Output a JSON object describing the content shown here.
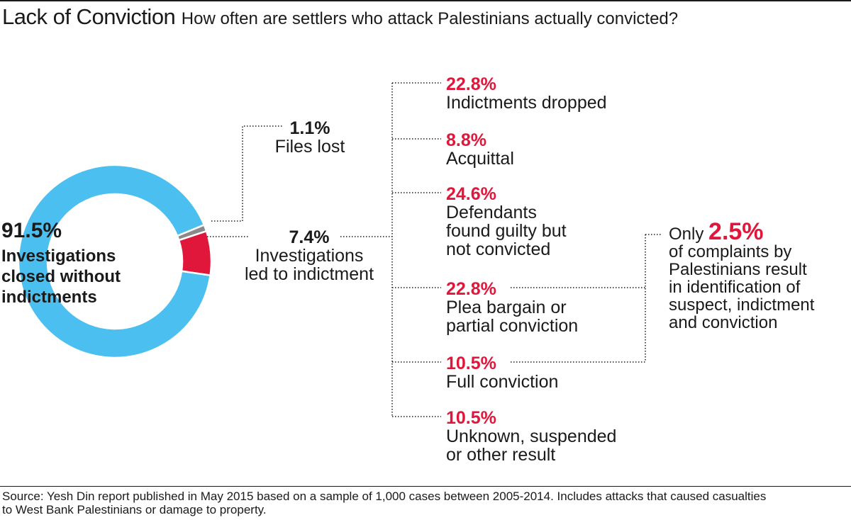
{
  "header": {
    "title": "Lack of Conviction",
    "subtitle": "How often are settlers who attack Palestinians actually convicted?"
  },
  "colors": {
    "closed": "#4bbfef",
    "indictment": "#e0173b",
    "lost": "#8a8a8a",
    "accent_text": "#e0173b"
  },
  "chart_data": {
    "type": "pie",
    "title": "Lack of Conviction",
    "donut": true,
    "slices": [
      {
        "label": "Investigations closed without indictments",
        "value": 91.5,
        "display": "91.5%"
      },
      {
        "label": "Investigations led to indictment",
        "value": 7.4,
        "display": "7.4%"
      },
      {
        "label": "Files lost",
        "value": 1.1,
        "display": "1.1%"
      }
    ],
    "breakdown": {
      "parent": "Investigations led to indictment",
      "items": [
        {
          "label": "Indictments dropped",
          "value": 22.8,
          "display": "22.8%"
        },
        {
          "label": "Acquittal",
          "value": 8.8,
          "display": "8.8%"
        },
        {
          "label": "Defendants found guilty but not convicted",
          "value": 24.6,
          "display": "24.6%"
        },
        {
          "label": "Plea bargain or partial conviction",
          "value": 22.8,
          "display": "22.8%"
        },
        {
          "label": "Full conviction",
          "value": 10.5,
          "display": "10.5%"
        },
        {
          "label": "Unknown, suspended or other result",
          "value": 10.5,
          "display": "10.5%"
        }
      ]
    },
    "summary": {
      "prefix": "Only",
      "value": "2.5%",
      "text_lines": [
        "of complaints by",
        "Palestinians result",
        "in identification of",
        "suspect, indictment",
        "and conviction"
      ]
    }
  },
  "labels": {
    "closed_pct": "91.5%",
    "closed_lines": [
      "Investigations",
      "closed without",
      "indictments"
    ],
    "lost_pct": "1.1%",
    "lost_label": "Files lost",
    "indict_pct": "7.4%",
    "indict_lines": [
      "Investigations",
      "led to indictment"
    ],
    "b0_pct": "22.8%",
    "b0_lines": [
      "Indictments dropped"
    ],
    "b1_pct": "8.8%",
    "b1_lines": [
      "Acquittal"
    ],
    "b2_pct": "24.6%",
    "b2_lines": [
      "Defendants",
      "found guilty but",
      "not convicted"
    ],
    "b3_pct": "22.8%",
    "b3_lines": [
      "Plea bargain or",
      "partial conviction"
    ],
    "b4_pct": "10.5%",
    "b4_lines": [
      "Full conviction"
    ],
    "b5_pct": "10.5%",
    "b5_lines": [
      "Unknown, suspended",
      "or other result"
    ]
  },
  "footer": {
    "source_line1": "Source: Yesh Din report published in May 2015 based on a sample of 1,000 cases between 2005-2014. Includes attacks that caused casualties",
    "source_line2": "to West Bank Palestinians or damage to property."
  }
}
